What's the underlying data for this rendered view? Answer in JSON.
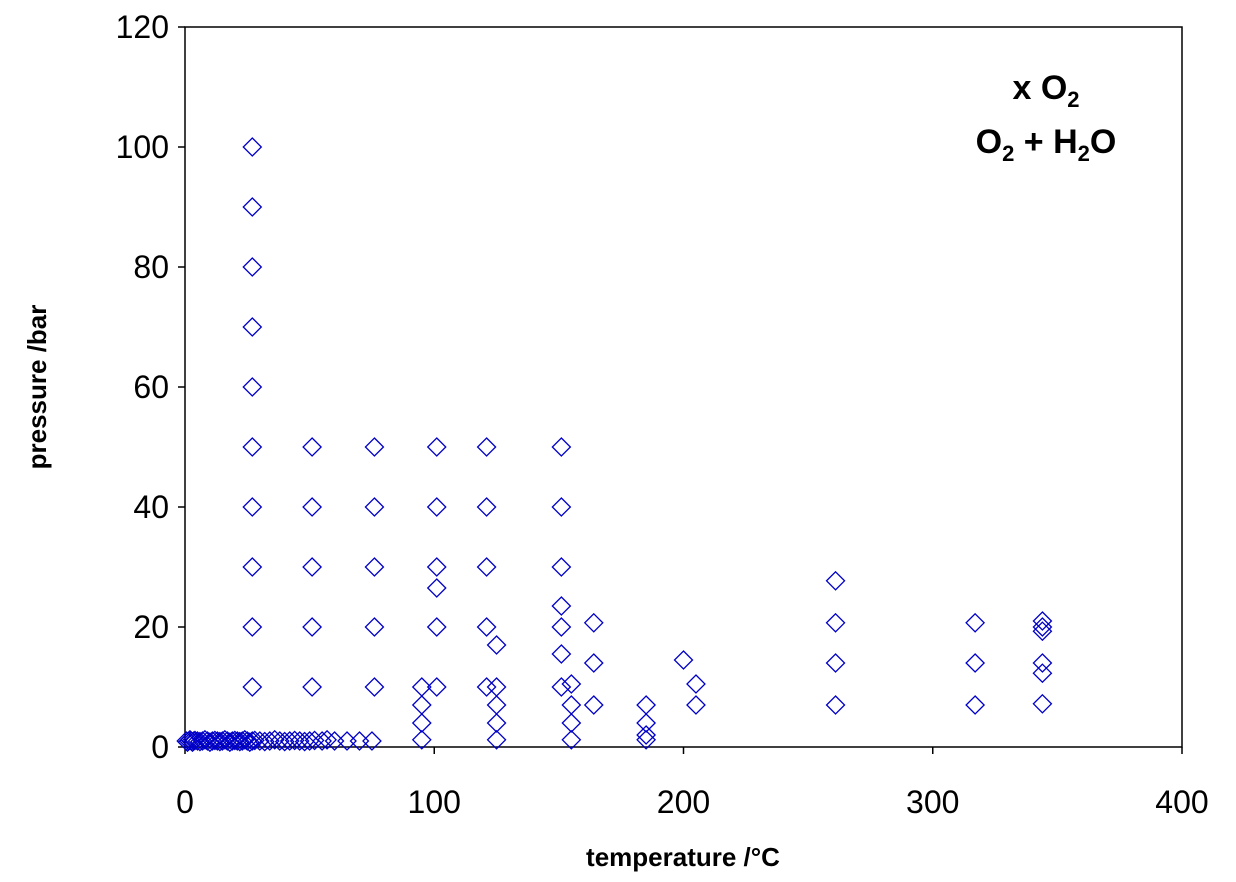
{
  "chart_data": {
    "type": "scatter",
    "xlabel": "temperature /°C",
    "ylabel": "pressure /bar",
    "xlim": [
      0,
      400
    ],
    "ylim": [
      0,
      120
    ],
    "xticks": [
      "0",
      "100",
      "200",
      "300",
      "400"
    ],
    "yticks": [
      "0",
      "20",
      "40",
      "60",
      "80",
      "100",
      "120"
    ],
    "grid": false,
    "legend": "none",
    "marker_color": "#0000c8",
    "marker": "open-diamond",
    "annotation": {
      "line1": {
        "prefix": "x O",
        "sub": "2",
        "suffix": ""
      },
      "line2": {
        "prefix": "O",
        "sub1": "2",
        "middle": " + H",
        "sub2": "2",
        "suffix": "O"
      }
    },
    "series": [
      {
        "points": [
          [
            0.5,
            1
          ],
          [
            1,
            0.8
          ],
          [
            1.5,
            1
          ],
          [
            2,
            1.2
          ],
          [
            2.5,
            1
          ],
          [
            3,
            0.8
          ],
          [
            3.5,
            1
          ],
          [
            4,
            1.1
          ],
          [
            5,
            1
          ],
          [
            6,
            0.9
          ],
          [
            7,
            1
          ],
          [
            8,
            1.2
          ],
          [
            9,
            1
          ],
          [
            10,
            0.8
          ],
          [
            11,
            1
          ],
          [
            12,
            1.1
          ],
          [
            13,
            1
          ],
          [
            14,
            0.9
          ],
          [
            15,
            1
          ],
          [
            16,
            1.2
          ],
          [
            17,
            1
          ],
          [
            18,
            0.8
          ],
          [
            19,
            1
          ],
          [
            20,
            1.1
          ],
          [
            21,
            1
          ],
          [
            22,
            0.9
          ],
          [
            23,
            1
          ],
          [
            24,
            1.2
          ],
          [
            25,
            1
          ],
          [
            26,
            0.8
          ],
          [
            27,
            1
          ],
          [
            28,
            1.1
          ],
          [
            30,
            1
          ],
          [
            32,
            0.9
          ],
          [
            34,
            1
          ],
          [
            36,
            1.2
          ],
          [
            38,
            1
          ],
          [
            40,
            0.9
          ],
          [
            42,
            1
          ],
          [
            44,
            1.1
          ],
          [
            46,
            1
          ],
          [
            48,
            0.9
          ],
          [
            50,
            1
          ],
          [
            52,
            1.1
          ],
          [
            55,
            1
          ],
          [
            57,
            1.2
          ],
          [
            60,
            1
          ],
          [
            65,
            1
          ],
          [
            70,
            1
          ],
          [
            75,
            1
          ],
          [
            27,
            10
          ],
          [
            27,
            20
          ],
          [
            27,
            30
          ],
          [
            27,
            40
          ],
          [
            27,
            50
          ],
          [
            27,
            60
          ],
          [
            27,
            70
          ],
          [
            27,
            80
          ],
          [
            27,
            90
          ],
          [
            27,
            100
          ],
          [
            51,
            10
          ],
          [
            51,
            20
          ],
          [
            51,
            30
          ],
          [
            51,
            40
          ],
          [
            51,
            50
          ],
          [
            76,
            10
          ],
          [
            76,
            20
          ],
          [
            76,
            30
          ],
          [
            76,
            40
          ],
          [
            76,
            50
          ],
          [
            95,
            1.2
          ],
          [
            95,
            4
          ],
          [
            95,
            7
          ],
          [
            95,
            10
          ],
          [
            101,
            10
          ],
          [
            101,
            20
          ],
          [
            101,
            26.5
          ],
          [
            101,
            30
          ],
          [
            101,
            40
          ],
          [
            101,
            50
          ],
          [
            121,
            10
          ],
          [
            121,
            20
          ],
          [
            121,
            30
          ],
          [
            121,
            40
          ],
          [
            121,
            50
          ],
          [
            125,
            1.2
          ],
          [
            125,
            4
          ],
          [
            125,
            7
          ],
          [
            125,
            10
          ],
          [
            125,
            17
          ],
          [
            151,
            10
          ],
          [
            151,
            15.5
          ],
          [
            151,
            20
          ],
          [
            151,
            23.5
          ],
          [
            151,
            30
          ],
          [
            151,
            40
          ],
          [
            151,
            50
          ],
          [
            155,
            1.2
          ],
          [
            155,
            4
          ],
          [
            155,
            7
          ],
          [
            155,
            10.5
          ],
          [
            164,
            7
          ],
          [
            164,
            14
          ],
          [
            164,
            20.7
          ],
          [
            185,
            1.2
          ],
          [
            185,
            2
          ],
          [
            185,
            4
          ],
          [
            185,
            7
          ],
          [
            200,
            14.5
          ],
          [
            205,
            7
          ],
          [
            205,
            10.5
          ],
          [
            261,
            7
          ],
          [
            261,
            14
          ],
          [
            261,
            20.7
          ],
          [
            261,
            27.7
          ],
          [
            317,
            7
          ],
          [
            317,
            14
          ],
          [
            317,
            20.7
          ],
          [
            344,
            7.2
          ],
          [
            344,
            12.3
          ],
          [
            344,
            14
          ],
          [
            344,
            19.3
          ],
          [
            344,
            20
          ],
          [
            344,
            21
          ]
        ]
      }
    ]
  }
}
